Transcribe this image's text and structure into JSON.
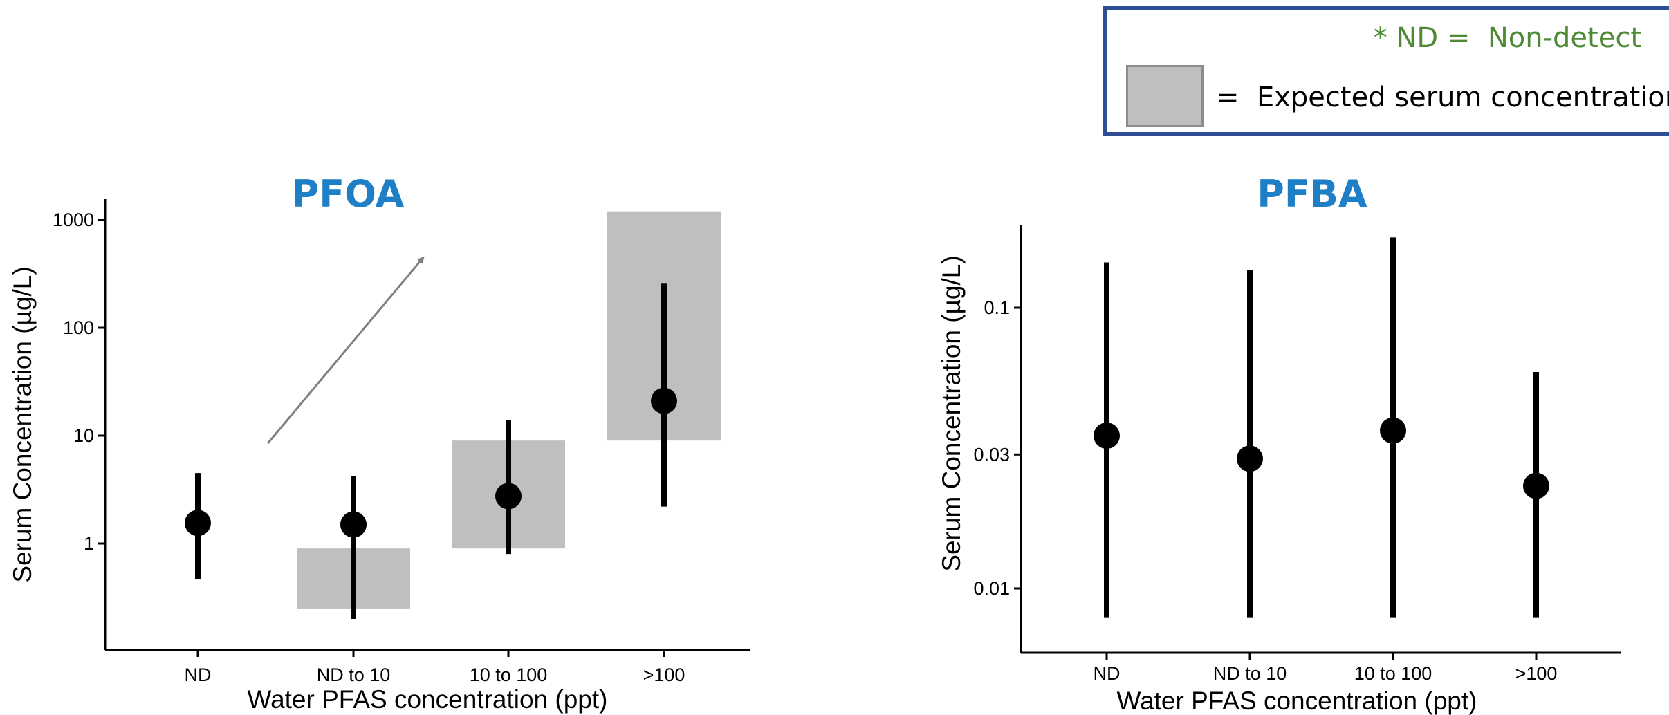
{
  "legend": {
    "note": "* ND =  Non-detect",
    "swatch_label": "=  Expected serum concentration",
    "swatch_color": "#bfbfbf",
    "border_color": "#2e4f95",
    "note_color": "#4e8a35"
  },
  "chart_data": [
    {
      "type": "errorbar",
      "title": "PFOA",
      "xlabel": "Water PFAS concentration (ppt)",
      "ylabel": "Serum Concentration (µg/L)",
      "yscale": "log",
      "categories": [
        "ND",
        "ND to 10",
        "10 to 100",
        ">100"
      ],
      "yticks": [
        1,
        10,
        100,
        1000
      ],
      "ytick_labels": [
        "1",
        "10",
        "100",
        "1000"
      ],
      "ylim": [
        0.12,
        1500
      ],
      "points": [
        1.55,
        1.5,
        2.75,
        21
      ],
      "ci_low": [
        0.47,
        0.2,
        0.8,
        2.2
      ],
      "ci_high": [
        4.5,
        4.2,
        14,
        260
      ],
      "expected_ranges": [
        null,
        [
          0.25,
          0.9
        ],
        [
          0.9,
          9
        ],
        [
          9,
          1200
        ]
      ],
      "trend_arrow": true,
      "title_color": "#1f7fc6"
    },
    {
      "type": "errorbar",
      "title": "PFBA",
      "xlabel": "Water PFAS concentration (ppt)",
      "ylabel": "Serum Concentration (µg/L)",
      "yscale": "log",
      "categories": [
        "ND",
        "ND to 10",
        "10 to 100",
        ">100"
      ],
      "yticks": [
        0.01,
        0.03,
        0.1
      ],
      "ytick_labels": [
        "0.01",
        "0.03",
        "0.1"
      ],
      "ylim": [
        0.0065,
        0.19
      ],
      "points": [
        0.035,
        0.029,
        0.0365,
        0.0232
      ],
      "ci_low": [
        0.0079,
        0.0079,
        0.0079,
        0.0079
      ],
      "ci_high": [
        0.145,
        0.136,
        0.178,
        0.059
      ],
      "expected_ranges": [
        null,
        null,
        null,
        null
      ],
      "trend_arrow": false,
      "title_color": "#1f7fc6"
    }
  ]
}
